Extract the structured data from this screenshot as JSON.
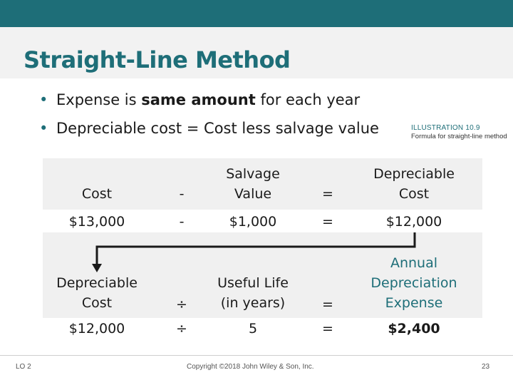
{
  "title": "Straight-Line Method",
  "bullets": [
    {
      "pre": "Expense is ",
      "bold": "same amount",
      "post": " for each year"
    },
    {
      "pre": "Depreciable cost = Cost less salvage value",
      "bold": "",
      "post": ""
    }
  ],
  "illustration": {
    "label": "ILLUSTRATION 10.9",
    "caption": "Formula for straight-line method"
  },
  "row1": {
    "headers": [
      "Cost",
      "-",
      "Salvage Value",
      "=",
      "Depreciable Cost"
    ],
    "values": [
      "$13,000",
      "-",
      "$1,000",
      "=",
      "$12,000"
    ]
  },
  "row2": {
    "headers": [
      "Depreciable Cost",
      "÷",
      "Useful Life (in years)",
      "=",
      "Annual Depreciation Expense"
    ],
    "values": [
      "$12,000",
      "÷",
      "5",
      "=",
      "$2,400"
    ]
  },
  "footer": {
    "lo": "LO 2",
    "copyright": "Copyright ©2018 John Wiley & Son, Inc.",
    "page": "23"
  },
  "colors": {
    "accent": "#1e6e78",
    "band": "#f0f0f0"
  }
}
